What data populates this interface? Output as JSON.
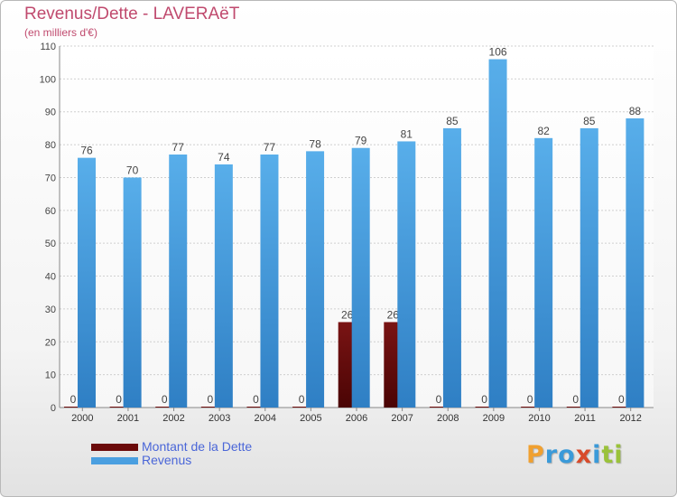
{
  "chart_data": {
    "type": "bar",
    "title": "Revenus/Dette - LAVERAëT",
    "subtitle": "(en milliers d'€)",
    "categories": [
      "2000",
      "2001",
      "2002",
      "2003",
      "2004",
      "2005",
      "2006",
      "2007",
      "2008",
      "2009",
      "2010",
      "2011",
      "2012"
    ],
    "series": [
      {
        "name": "Montant de la Dette",
        "color": "#6b0a0a",
        "values": [
          0,
          0,
          0,
          0,
          0,
          0,
          26,
          26,
          0,
          0,
          0,
          0,
          0
        ]
      },
      {
        "name": "Revenus",
        "color": "#4a9fe0",
        "values": [
          76,
          70,
          77,
          74,
          77,
          78,
          79,
          81,
          85,
          106,
          82,
          85,
          88
        ]
      }
    ],
    "ylim": [
      0,
      110
    ],
    "yticks": [
      0,
      10,
      20,
      30,
      40,
      50,
      60,
      70,
      80,
      90,
      100,
      110
    ],
    "grid": true,
    "legend": "bottom-left"
  },
  "logo": {
    "text": "Proxiti",
    "letters": [
      "P",
      "r",
      "o",
      "x",
      "i",
      "t",
      "i"
    ],
    "colors": [
      "#f0a030",
      "#3a9ad9",
      "#3a9ad9",
      "#d84a2a",
      "#3a9ad9",
      "#9ac23a",
      "#9ac23a"
    ]
  }
}
